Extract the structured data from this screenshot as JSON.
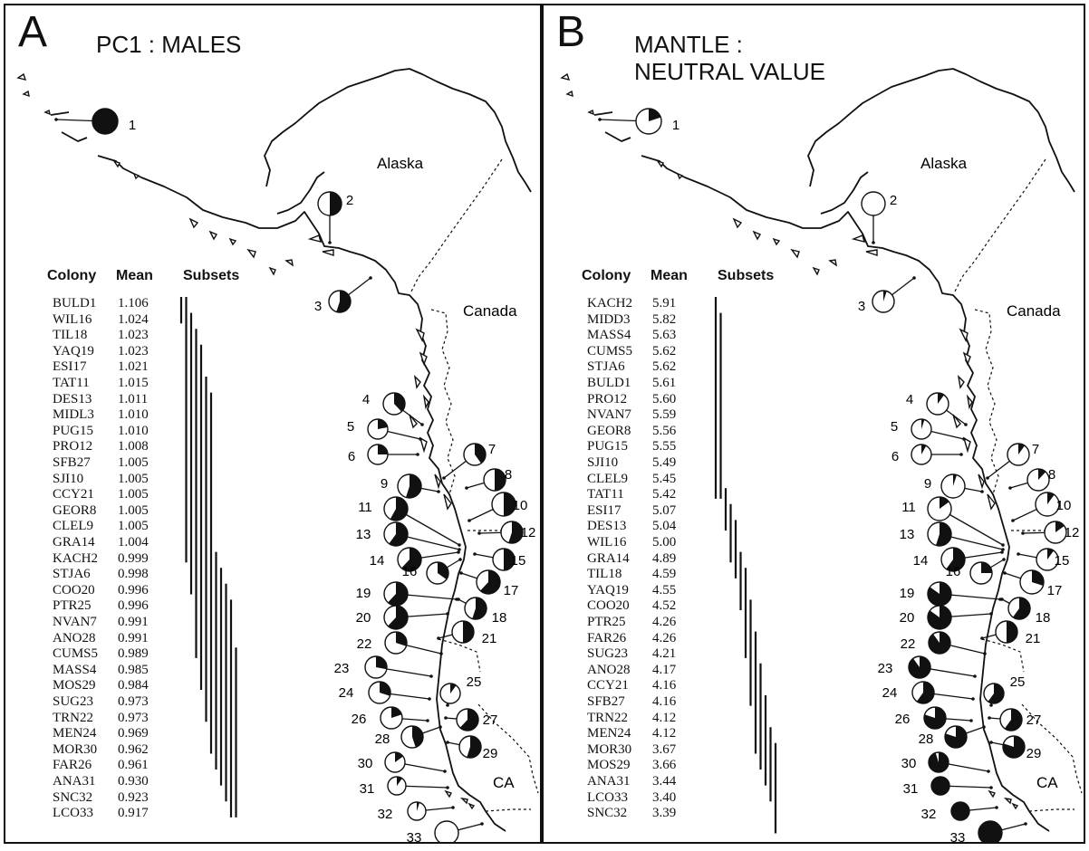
{
  "panels": [
    {
      "letter": "A",
      "title_lines": [
        "PC1 : MALES"
      ],
      "places": [
        "Alaska",
        "Canada",
        "CA"
      ],
      "headers": [
        "Colony",
        "Mean",
        "Subsets"
      ],
      "rows": [
        [
          "BULD1",
          "1.106"
        ],
        [
          "WIL16",
          "1.024"
        ],
        [
          "TIL18",
          "1.023"
        ],
        [
          "YAQ19",
          "1.023"
        ],
        [
          "ESI17",
          "1.021"
        ],
        [
          "TAT11",
          "1.015"
        ],
        [
          "DES13",
          "1.011"
        ],
        [
          "MIDL3",
          "1.010"
        ],
        [
          "PUG15",
          "1.010"
        ],
        [
          "PRO12",
          "1.008"
        ],
        [
          "SFB27",
          "1.005"
        ],
        [
          "SJI10",
          "1.005"
        ],
        [
          "CCY21",
          "1.005"
        ],
        [
          "GEOR8",
          "1.005"
        ],
        [
          "CLEL9",
          "1.005"
        ],
        [
          "GRA14",
          "1.004"
        ],
        [
          "KACH2",
          "0.999"
        ],
        [
          "STJA6",
          "0.998"
        ],
        [
          "COO20",
          "0.996"
        ],
        [
          "PTR25",
          "0.996"
        ],
        [
          "NVAN7",
          "0.991"
        ],
        [
          "ANO28",
          "0.991"
        ],
        [
          "CUMS5",
          "0.989"
        ],
        [
          "MASS4",
          "0.985"
        ],
        [
          "MOS29",
          "0.984"
        ],
        [
          "SUG23",
          "0.973"
        ],
        [
          "TRN22",
          "0.973"
        ],
        [
          "MEN24",
          "0.969"
        ],
        [
          "MOR30",
          "0.962"
        ],
        [
          "FAR26",
          "0.961"
        ],
        [
          "ANA31",
          "0.930"
        ],
        [
          "SNC32",
          "0.923"
        ],
        [
          "LCO33",
          "0.917"
        ]
      ],
      "subsets": [
        [
          0,
          1
        ],
        [
          0,
          16
        ],
        [
          1,
          18
        ],
        [
          2,
          22
        ],
        [
          3,
          24
        ],
        [
          5,
          26
        ],
        [
          6,
          28
        ],
        [
          16,
          29
        ],
        [
          17,
          30
        ],
        [
          18,
          31
        ],
        [
          19,
          32
        ],
        [
          22,
          32
        ]
      ],
      "colonies": [
        {
          "n": "1",
          "f": 1.0
        },
        {
          "n": "2",
          "f": 0.5
        },
        {
          "n": "3",
          "f": 0.55
        },
        {
          "n": "4",
          "f": 0.38
        },
        {
          "n": "5",
          "f": 0.22
        },
        {
          "n": "6",
          "f": 0.25
        },
        {
          "n": "7",
          "f": 0.4
        },
        {
          "n": "8",
          "f": 0.5
        },
        {
          "n": "9",
          "f": 0.55
        },
        {
          "n": "10",
          "f": 0.5
        },
        {
          "n": "11",
          "f": 0.58
        },
        {
          "n": "12",
          "f": 0.55
        },
        {
          "n": "13",
          "f": 0.6
        },
        {
          "n": "14",
          "f": 0.62
        },
        {
          "n": "15",
          "f": 0.5
        },
        {
          "n": "16",
          "f": 0.35
        },
        {
          "n": "17",
          "f": 0.62
        },
        {
          "n": "18",
          "f": 0.55
        },
        {
          "n": "19",
          "f": 0.62
        },
        {
          "n": "20",
          "f": 0.62
        },
        {
          "n": "21",
          "f": 0.5
        },
        {
          "n": "22",
          "f": 0.3
        },
        {
          "n": "23",
          "f": 0.28
        },
        {
          "n": "24",
          "f": 0.3
        },
        {
          "n": "25",
          "f": 0.1
        },
        {
          "n": "26",
          "f": 0.2
        },
        {
          "n": "27",
          "f": 0.62
        },
        {
          "n": "28",
          "f": 0.45
        },
        {
          "n": "29",
          "f": 0.55
        },
        {
          "n": "30",
          "f": 0.15
        },
        {
          "n": "31",
          "f": 0.1
        },
        {
          "n": "32",
          "f": 0.05
        },
        {
          "n": "33",
          "f": 0.0
        }
      ]
    },
    {
      "letter": "B",
      "title_lines": [
        "MANTLE :",
        "NEUTRAL VALUE"
      ],
      "places": [
        "Alaska",
        "Canada",
        "CA"
      ],
      "headers": [
        "Colony",
        "Mean",
        "Subsets"
      ],
      "rows": [
        [
          "KACH2",
          "5.91"
        ],
        [
          "MIDD3",
          "5.82"
        ],
        [
          "MASS4",
          "5.63"
        ],
        [
          "CUMS5",
          "5.62"
        ],
        [
          "STJA6",
          "5.62"
        ],
        [
          "BULD1",
          "5.61"
        ],
        [
          "PRO12",
          "5.60"
        ],
        [
          "NVAN7",
          "5.59"
        ],
        [
          "GEOR8",
          "5.56"
        ],
        [
          "PUG15",
          "5.55"
        ],
        [
          "SJI10",
          "5.49"
        ],
        [
          "CLEL9",
          "5.45"
        ],
        [
          "TAT11",
          "5.42"
        ],
        [
          "ESI17",
          "5.07"
        ],
        [
          "DES13",
          "5.04"
        ],
        [
          "WIL16",
          "5.00"
        ],
        [
          "GRA14",
          "4.89"
        ],
        [
          "TIL18",
          "4.59"
        ],
        [
          "YAQ19",
          "4.55"
        ],
        [
          "COO20",
          "4.52"
        ],
        [
          "PTR25",
          "4.26"
        ],
        [
          "FAR26",
          "4.26"
        ],
        [
          "SUG23",
          "4.21"
        ],
        [
          "ANO28",
          "4.17"
        ],
        [
          "CCY21",
          "4.16"
        ],
        [
          "SFB27",
          "4.16"
        ],
        [
          "TRN22",
          "4.12"
        ],
        [
          "MEN24",
          "4.12"
        ],
        [
          "MOR30",
          "3.67"
        ],
        [
          "MOS29",
          "3.66"
        ],
        [
          "ANA31",
          "3.44"
        ],
        [
          "LCO33",
          "3.40"
        ],
        [
          "SNC32",
          "3.39"
        ]
      ],
      "subsets": [
        [
          0,
          12
        ],
        [
          1,
          12
        ],
        [
          12,
          14
        ],
        [
          13,
          16
        ],
        [
          14,
          17
        ],
        [
          16,
          19
        ],
        [
          17,
          22
        ],
        [
          19,
          25
        ],
        [
          21,
          28
        ],
        [
          23,
          29
        ],
        [
          25,
          30
        ],
        [
          27,
          31
        ],
        [
          28,
          33
        ]
      ],
      "colonies": [
        {
          "n": "1",
          "f": 0.2
        },
        {
          "n": "2",
          "f": 0.0
        },
        {
          "n": "3",
          "f": 0.05
        },
        {
          "n": "4",
          "f": 0.1
        },
        {
          "n": "5",
          "f": 0.05
        },
        {
          "n": "6",
          "f": 0.08
        },
        {
          "n": "7",
          "f": 0.1
        },
        {
          "n": "8",
          "f": 0.12
        },
        {
          "n": "9",
          "f": 0.05
        },
        {
          "n": "10",
          "f": 0.1
        },
        {
          "n": "11",
          "f": 0.15
        },
        {
          "n": "12",
          "f": 0.15
        },
        {
          "n": "13",
          "f": 0.55
        },
        {
          "n": "14",
          "f": 0.6
        },
        {
          "n": "15",
          "f": 0.1
        },
        {
          "n": "16",
          "f": 0.25
        },
        {
          "n": "17",
          "f": 0.3
        },
        {
          "n": "18",
          "f": 0.6
        },
        {
          "n": "19",
          "f": 0.85
        },
        {
          "n": "20",
          "f": 0.85
        },
        {
          "n": "21",
          "f": 0.5
        },
        {
          "n": "22",
          "f": 0.9
        },
        {
          "n": "23",
          "f": 0.9
        },
        {
          "n": "24",
          "f": 0.6
        },
        {
          "n": "25",
          "f": 0.6
        },
        {
          "n": "26",
          "f": 0.8
        },
        {
          "n": "27",
          "f": 0.6
        },
        {
          "n": "28",
          "f": 0.8
        },
        {
          "n": "29",
          "f": 0.8
        },
        {
          "n": "30",
          "f": 0.95
        },
        {
          "n": "31",
          "f": 1.0
        },
        {
          "n": "32",
          "f": 1.0
        },
        {
          "n": "33",
          "f": 1.0
        }
      ]
    }
  ]
}
